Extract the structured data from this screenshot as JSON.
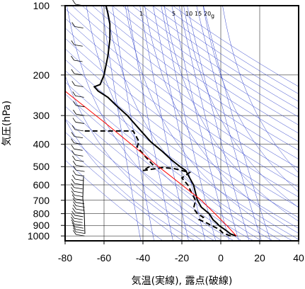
{
  "chart_data": {
    "type": "line",
    "title": "",
    "xlabel": "気温(実線), 露点(破線)",
    "ylabel": "気圧(hPa)",
    "x_ticks": [
      "-80",
      "-60",
      "-40",
      "-20",
      "0",
      "20",
      "40"
    ],
    "y_ticks": [
      "100",
      "200",
      "300",
      "400",
      "500",
      "600",
      "700",
      "800",
      "900",
      "1000"
    ],
    "xlim": [
      -80,
      40
    ],
    "ylim": [
      1050,
      100
    ],
    "y_scale": "log",
    "grid": true,
    "mixing_ratio_labels": [
      "1",
      "5",
      "10",
      "15",
      "20",
      "g"
    ],
    "colors": {
      "temperature": "#000000",
      "dewpoint": "#000000",
      "parcel": "#ff0000",
      "reference_lines": "#3344cc"
    },
    "series": [
      {
        "style": "solid",
        "points": [
          [
            8,
            1000
          ],
          [
            5,
            980
          ],
          [
            3,
            950
          ],
          [
            1,
            925
          ],
          [
            -1,
            900
          ],
          [
            -2,
            880
          ],
          [
            -4,
            850
          ],
          [
            -6,
            800
          ],
          [
            -10,
            750
          ],
          [
            -12,
            700
          ],
          [
            -13,
            650
          ],
          [
            -14,
            600
          ],
          [
            -16,
            560
          ],
          [
            -18,
            520
          ],
          [
            -21,
            500
          ],
          [
            -25,
            470
          ],
          [
            -30,
            430
          ],
          [
            -36,
            390
          ],
          [
            -41,
            350
          ],
          [
            -48,
            300
          ],
          [
            -54,
            270
          ],
          [
            -58,
            250
          ],
          [
            -63,
            235
          ],
          [
            -65,
            225
          ],
          [
            -62,
            220
          ],
          [
            -60,
            200
          ],
          [
            -58,
            165
          ],
          [
            -57,
            140
          ],
          [
            -57,
            120
          ],
          [
            -58,
            108
          ],
          [
            -59,
            100
          ]
        ]
      },
      {
        "style": "dashed",
        "points": [
          [
            5,
            1000
          ],
          [
            3,
            985
          ],
          [
            1,
            970
          ],
          [
            0,
            950
          ],
          [
            -2,
            925
          ],
          [
            -5,
            900
          ],
          [
            -7,
            880
          ],
          [
            -11,
            850
          ],
          [
            -9,
            830
          ],
          [
            -12,
            800
          ],
          [
            -14,
            760
          ],
          [
            -13,
            700
          ],
          [
            -15,
            650
          ],
          [
            -17,
            600
          ],
          [
            -20,
            560
          ],
          [
            -16,
            530
          ],
          [
            -24,
            510
          ],
          [
            -30,
            505
          ],
          [
            -40,
            520
          ],
          [
            -35,
            490
          ],
          [
            -37,
            470
          ],
          [
            -40,
            440
          ],
          [
            -43,
            410
          ],
          [
            -42,
            390
          ],
          [
            -45,
            350
          ],
          [
            -70,
            350
          ]
        ]
      },
      {
        "style": "solid",
        "points": [
          [
            8,
            1000
          ],
          [
            3,
            900
          ],
          [
            -3,
            800
          ],
          [
            -10,
            700
          ],
          [
            -20,
            600
          ],
          [
            -32,
            500
          ],
          [
            -46,
            400
          ],
          [
            -60,
            320
          ],
          [
            -76,
            250
          ],
          [
            -80,
            235
          ]
        ]
      }
    ],
    "wind_barbs": "left column, 100–1000 hPa"
  }
}
